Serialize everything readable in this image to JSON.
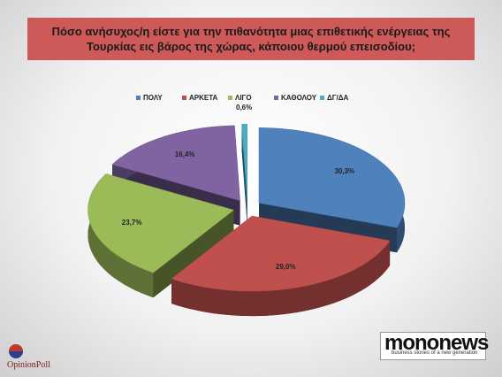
{
  "chart_data": {
    "type": "pie",
    "title": "Πόσο ανήσυχος/η είστε για την πιθανότητα μιας επιθετικής ενέργειας της Τουρκίας εις βάρος της χώρας, κάποιου θερμού επεισοδίου;",
    "categories": [
      "ΠΟΛΥ",
      "ΑΡΚΕΤΑ",
      "ΛΙΓΟ",
      "ΚΑΘΟΛΟΥ",
      "ΔΓ/ΔΑ"
    ],
    "values": [
      30.3,
      29.0,
      23.7,
      16.4,
      0.6
    ],
    "value_labels": [
      "30,3%",
      "29,0%",
      "23,7%",
      "16,4%",
      "0,6%"
    ],
    "colors": [
      "#4f81bd",
      "#c0504d",
      "#9bbb59",
      "#8064a2",
      "#4bacc6"
    ],
    "legend": "top"
  },
  "logos": {
    "left": "OpinionPoll",
    "right": "mononews",
    "right_tagline": "business stories of a new generation"
  }
}
